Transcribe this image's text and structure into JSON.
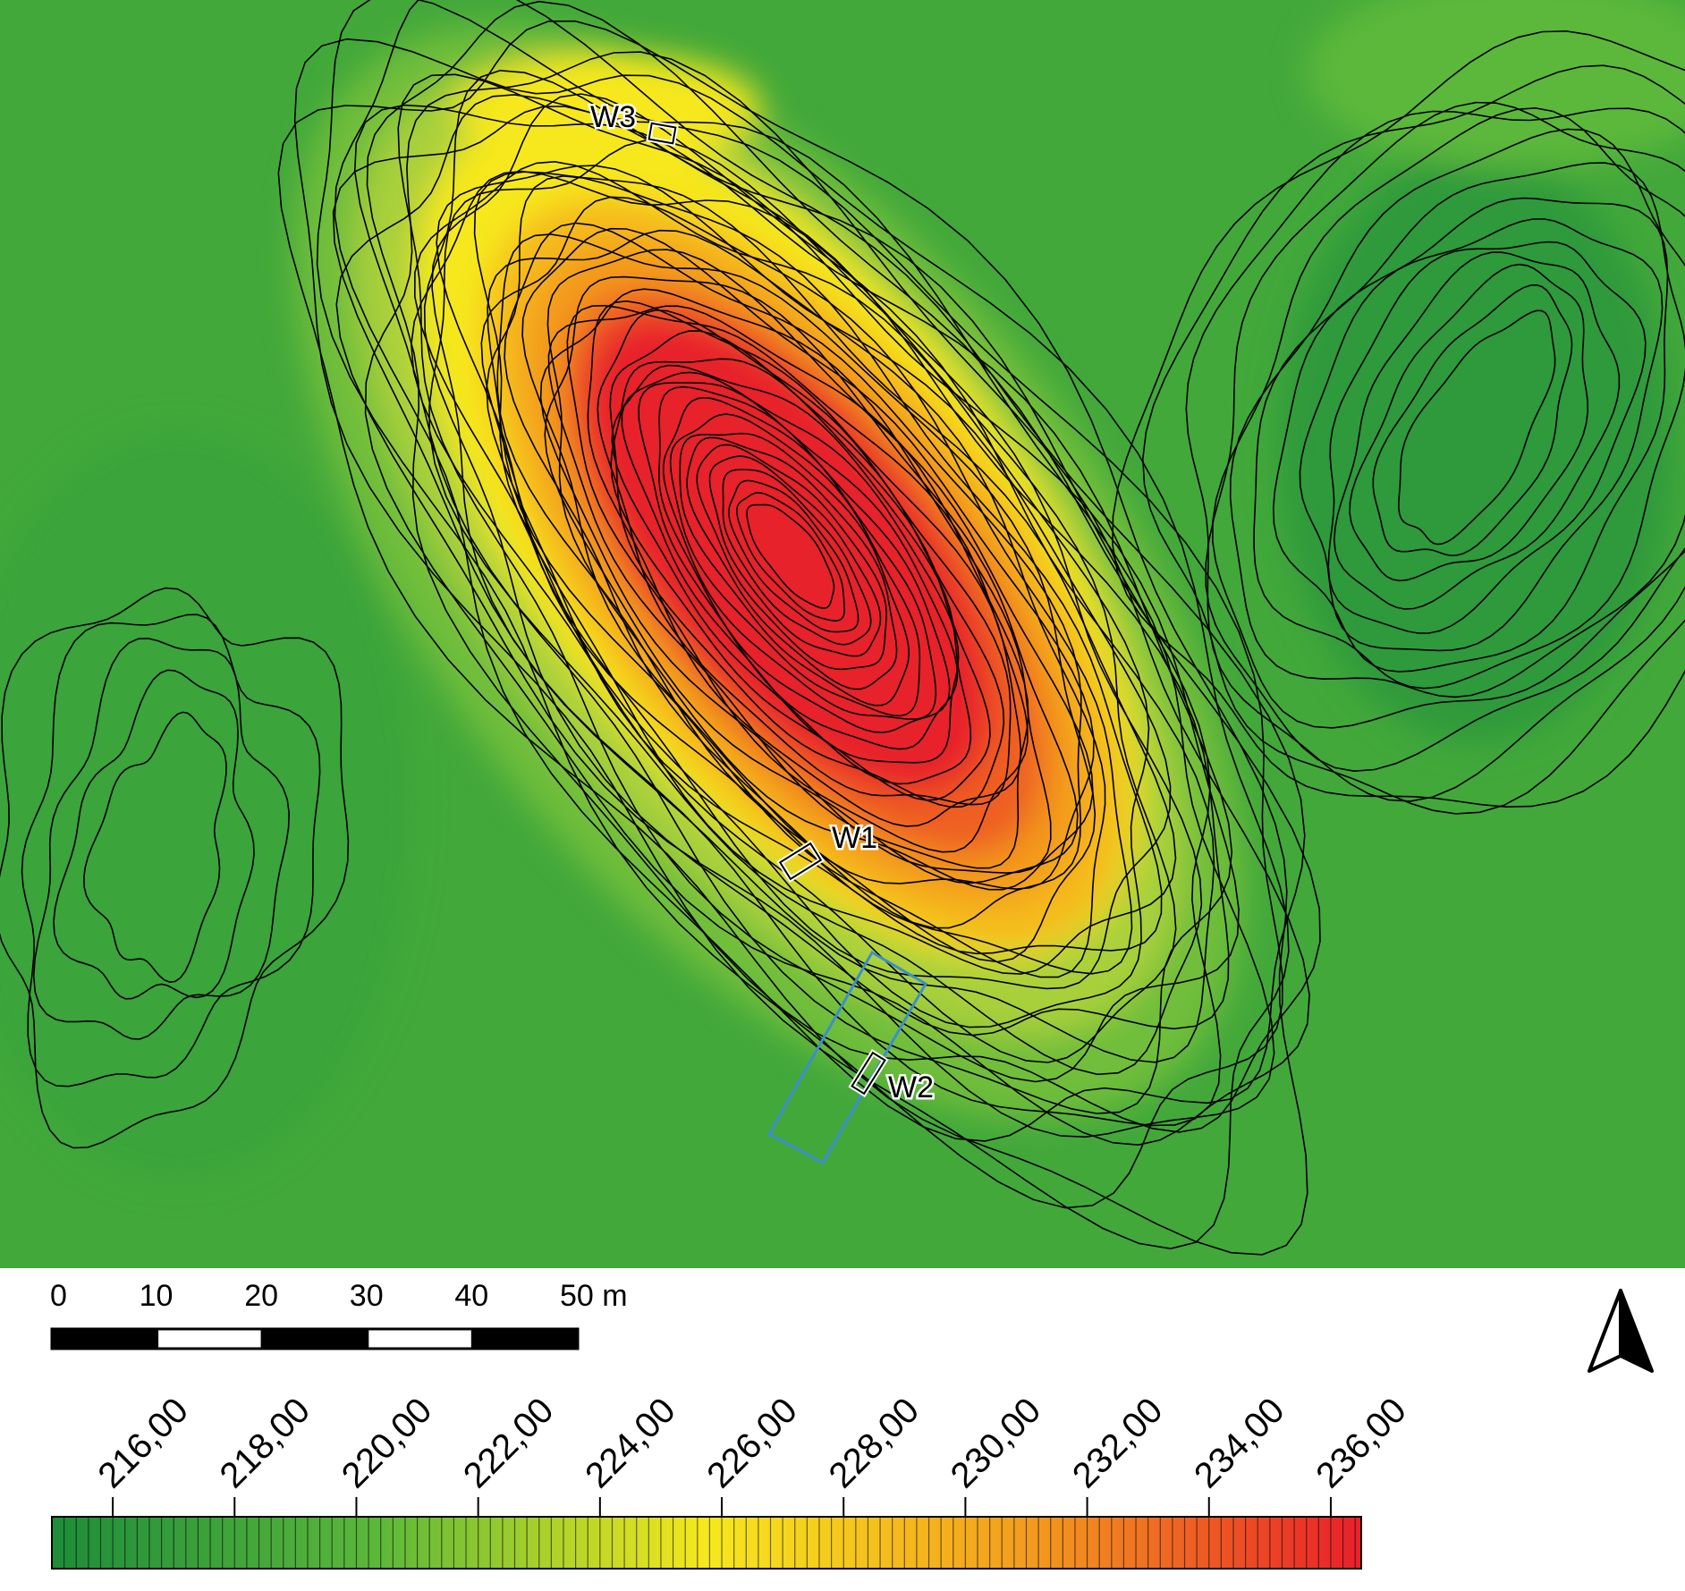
{
  "map": {
    "labels": {
      "w1": "W1",
      "w2": "W2",
      "w3": "W3"
    },
    "colors": {
      "low": "#1e8c3a",
      "mid_green": "#5cb83a",
      "yellow": "#f6e81e",
      "orange": "#f39a1e",
      "high": "#e8202a",
      "contour": "#000000",
      "trench": "#3d8ed0"
    }
  },
  "scale_bar": {
    "ticks": [
      "0",
      "10",
      "20",
      "30",
      "40",
      "50 m"
    ]
  },
  "north_arrow": {
    "icon": "north-arrow-icon"
  },
  "elevation_legend": {
    "ticks": [
      "216,00",
      "218,00",
      "220,00",
      "222,00",
      "224,00",
      "226,00",
      "228,00",
      "230,00",
      "232,00",
      "234,00",
      "236,00"
    ],
    "range": [
      215,
      236.5
    ],
    "colors": [
      "#1e8c3a",
      "#5cb83a",
      "#f6e81e",
      "#f39a1e",
      "#e8202a"
    ]
  }
}
